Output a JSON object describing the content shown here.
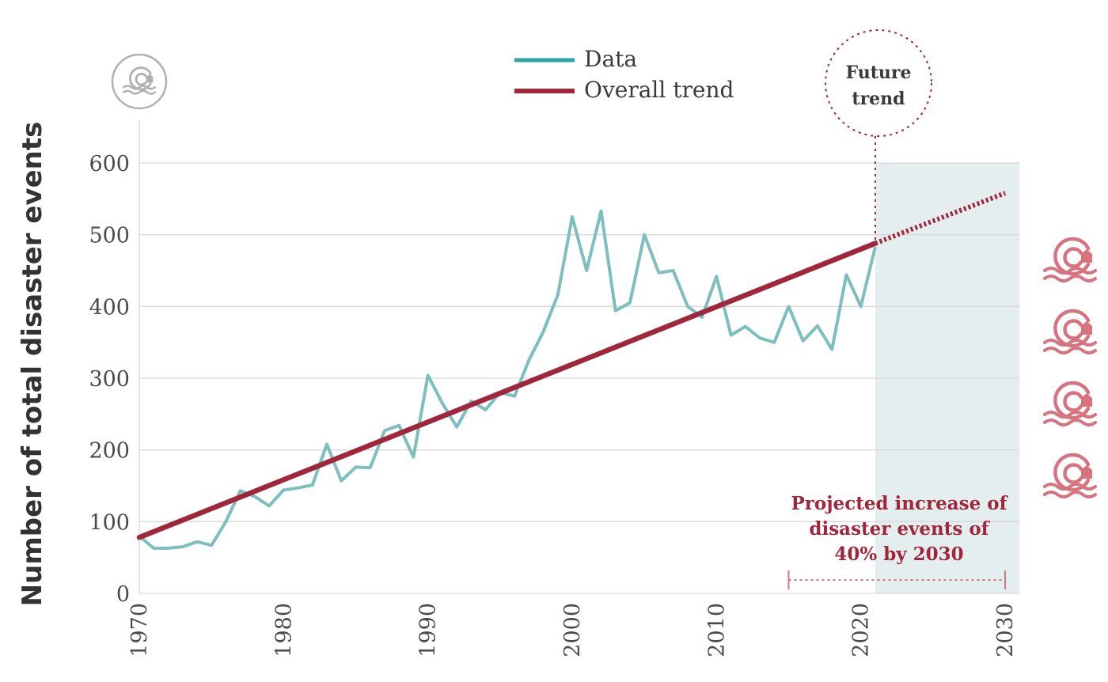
{
  "chart_data": {
    "type": "line",
    "ylabel": "Number of total disaster events",
    "xlabel": "",
    "xlim": [
      1970,
      2030
    ],
    "ylim": [
      0,
      600
    ],
    "x_ticks": [
      "1970",
      "1980",
      "1990",
      "2000",
      "2010",
      "2020",
      "2030"
    ],
    "y_ticks": [
      "0",
      "100",
      "200",
      "300",
      "400",
      "500",
      "600"
    ],
    "grid": true,
    "legend_placement": "top-center",
    "series": [
      {
        "name": "Data",
        "color": "#7dbfbf",
        "x": [
          1970,
          1971,
          1972,
          1973,
          1974,
          1975,
          1976,
          1977,
          1978,
          1979,
          1980,
          1981,
          1982,
          1983,
          1984,
          1985,
          1986,
          1987,
          1988,
          1989,
          1990,
          1991,
          1992,
          1993,
          1994,
          1995,
          1996,
          1997,
          1998,
          1999,
          2000,
          2001,
          2002,
          2003,
          2004,
          2005,
          2006,
          2007,
          2008,
          2009,
          2010,
          2011,
          2012,
          2013,
          2014,
          2015,
          2016,
          2017,
          2018,
          2019,
          2020,
          2021
        ],
        "y": [
          80,
          63,
          63,
          65,
          72,
          67,
          100,
          143,
          135,
          122,
          144,
          147,
          151,
          208,
          157,
          176,
          175,
          227,
          234,
          190,
          304,
          265,
          232,
          268,
          256,
          280,
          275,
          325,
          365,
          416,
          525,
          450,
          533,
          394,
          405,
          500,
          447,
          450,
          400,
          385,
          442,
          360,
          372,
          356,
          350,
          400,
          352,
          373,
          340,
          444,
          400,
          483
        ]
      },
      {
        "name": "Overall trend",
        "color": "#a0263c",
        "x": [
          1970,
          2021
        ],
        "y": [
          78,
          488
        ]
      }
    ],
    "future_trend": {
      "x": [
        2021,
        2030
      ],
      "y": [
        488,
        558
      ],
      "style": "dotted",
      "color": "#a0263c"
    },
    "shaded_region": {
      "x": [
        2021,
        2031
      ],
      "color": "#e5eeee"
    },
    "projection_bracket": {
      "x": [
        2015,
        2030
      ]
    }
  },
  "legend": {
    "items": [
      {
        "label": "Data",
        "color": "#2aa6a6"
      },
      {
        "label": "Overall trend",
        "color": "#a0263c"
      }
    ]
  },
  "annotations": {
    "future_trend": [
      "Future",
      "trend"
    ],
    "projection": [
      "Projected increase of",
      "disaster events of",
      "40% by 2030"
    ],
    "projection_color": "#a0263c"
  },
  "icons": {
    "top_logo": "climate-disaster-logo-icon",
    "side_icons": [
      "disaster-icon",
      "disaster-icon",
      "disaster-icon",
      "disaster-icon"
    ],
    "side_icon_color": "#d6737f",
    "logo_color": "#b0b0b0"
  }
}
